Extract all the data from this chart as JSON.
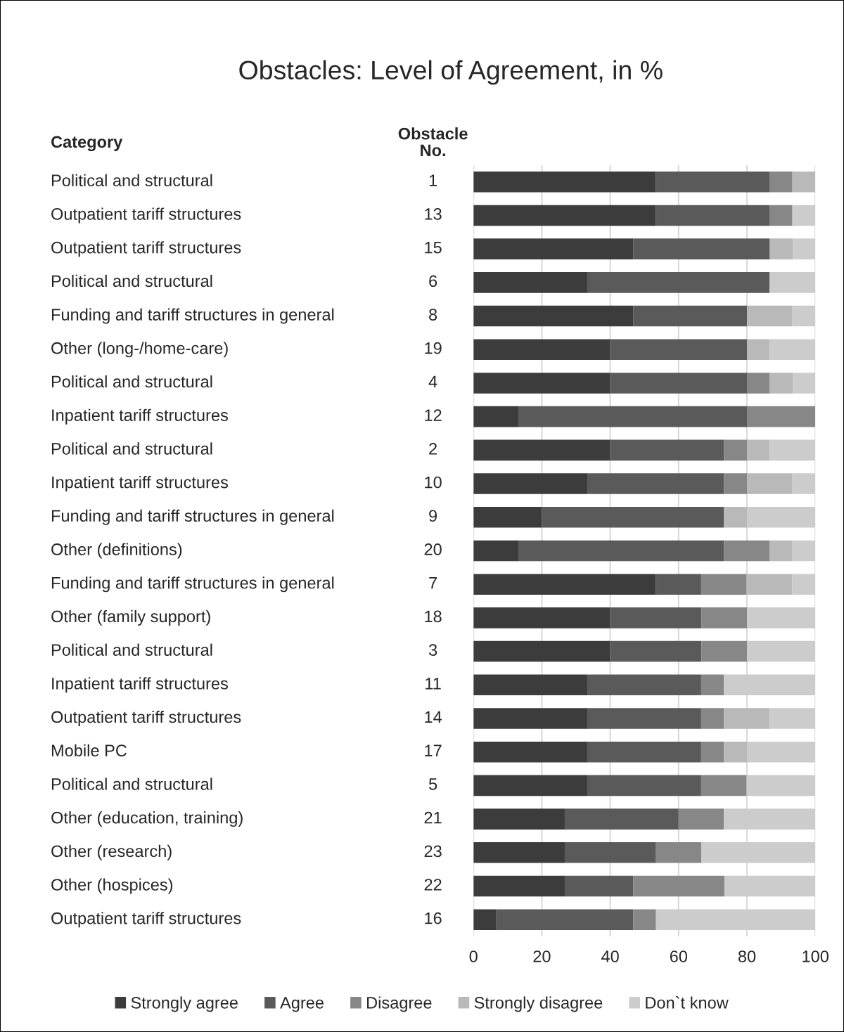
{
  "chart_data": {
    "type": "bar",
    "orientation": "horizontal",
    "stacked": true,
    "title": "Obstacles: Level of Agreement, in %",
    "annotations": [
      "Category",
      "Obstacle No."
    ],
    "y2_categories": [
      "Political and structural",
      "Outpatient tariff structures",
      "Outpatient tariff structures",
      "Political and structural",
      "Funding and tariff structures in general",
      "Other (long-/home-care)",
      "Political and structural",
      "Inpatient tariff structures",
      "Political and structural",
      "Inpatient tariff structures",
      "Funding and tariff structures in general",
      "Other (definitions)",
      "Funding and tariff structures in general",
      "Other (family support)",
      "Political and structural",
      "Inpatient tariff structures",
      "Outpatient tariff structures",
      "Mobile PC",
      "Political and structural",
      "Other (education, training)",
      "Other (research)",
      "Other (hospices)",
      "Outpatient tariff structures"
    ],
    "categories": [
      "1",
      "13",
      "15",
      "6",
      "8",
      "19",
      "4",
      "12",
      "2",
      "10",
      "9",
      "20",
      "7",
      "18",
      "3",
      "11",
      "14",
      "17",
      "5",
      "21",
      "23",
      "22",
      "16"
    ],
    "series": [
      {
        "name": "Strongly agree",
        "color": "#3c3c3c",
        "values": [
          53.3,
          53.3,
          46.7,
          33.3,
          46.7,
          40,
          40,
          13.3,
          40,
          33.3,
          20,
          13.3,
          53.3,
          40,
          40,
          33.3,
          33.3,
          33.3,
          33.3,
          26.7,
          26.7,
          26.7,
          6.7
        ]
      },
      {
        "name": "Agree",
        "color": "#5a5a5a",
        "values": [
          33.3,
          33.3,
          40,
          53.3,
          33.3,
          40,
          40,
          66.7,
          33.3,
          40,
          53.3,
          60,
          13.3,
          26.7,
          26.7,
          33.3,
          33.3,
          33.3,
          33.3,
          33.3,
          26.7,
          20,
          40
        ]
      },
      {
        "name": "Disagree",
        "color": "#878787",
        "values": [
          6.7,
          6.7,
          0,
          0,
          0,
          0,
          6.7,
          20,
          6.7,
          6.7,
          0,
          13.3,
          13.3,
          13.3,
          13.3,
          6.7,
          6.7,
          6.7,
          13.3,
          13.3,
          13.3,
          26.7,
          6.7
        ]
      },
      {
        "name": "Strongly disagree",
        "color": "#b9b9b9",
        "values": [
          6.7,
          0,
          6.7,
          0,
          13.3,
          6.7,
          6.7,
          0,
          6.7,
          13.3,
          6.7,
          6.7,
          13.3,
          0,
          0,
          0,
          13.3,
          6.7,
          0,
          0,
          0,
          0,
          0
        ]
      },
      {
        "name": "Don`t know",
        "color": "#cccccc",
        "values": [
          0,
          6.7,
          6.6,
          13.4,
          6.7,
          13.3,
          6.6,
          0,
          13.3,
          6.7,
          20,
          6.7,
          6.8,
          20,
          20,
          26.7,
          13.4,
          20,
          20.1,
          26.7,
          33.3,
          26.6,
          46.6
        ]
      }
    ],
    "xlim": [
      0,
      100
    ],
    "xticks": [
      0,
      20,
      40,
      60,
      80,
      100
    ],
    "grid": "x",
    "legend": "bottom"
  }
}
